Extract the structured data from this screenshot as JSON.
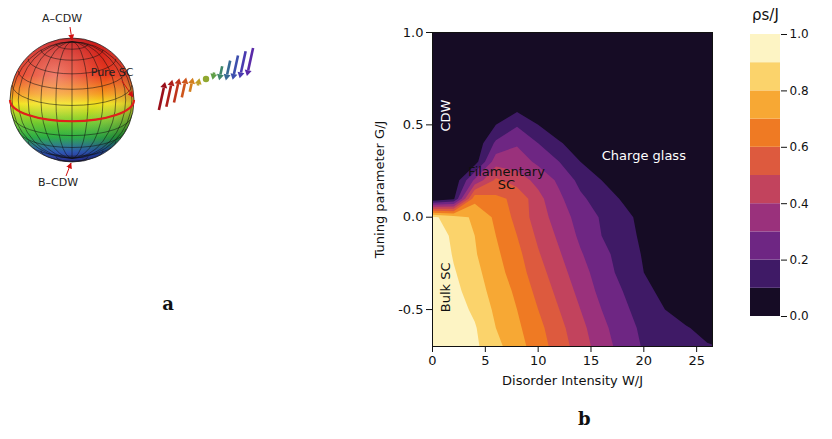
{
  "diagram": {
    "label": "a",
    "annotations": [
      "A–CDW",
      "Pure SC",
      "B–CDW"
    ]
  },
  "chart_data": {
    "type": "contour",
    "panel": "b",
    "x_label": "Disorder Intensity W/J",
    "y_label": "Tuning parameter G/J",
    "xlim": [
      0,
      26.5
    ],
    "ylim": [
      -0.7,
      1.0
    ],
    "xticks": [
      0,
      5,
      10,
      15,
      20,
      25
    ],
    "yticks": [
      {
        "value": 1.0,
        "label": "1.0"
      },
      0.5,
      {
        "value": 0,
        "label": "0.0"
      },
      -0.5
    ],
    "grid": false,
    "annotations": [
      {
        "text": "CDW",
        "x": 1.3,
        "y": 0.55
      },
      {
        "text": "Filamentary SC",
        "x": 7,
        "y": 0.21
      },
      {
        "text": "Charge glass",
        "x": 20,
        "y": 0.33
      },
      {
        "text": "Bulk SC",
        "x": 1.3,
        "y": -0.38
      }
    ],
    "x": [
      0,
      2,
      4,
      6,
      8,
      10,
      12,
      14,
      16,
      18,
      20,
      22,
      24,
      26
    ],
    "y": [
      1.0,
      0.9,
      0.8,
      0.7,
      0.6,
      0.5,
      0.4,
      0.3,
      0.2,
      0.1,
      0.0,
      -0.1,
      -0.2,
      -0.3,
      -0.4,
      -0.5,
      -0.6,
      -0.7
    ],
    "values": [
      [
        0,
        0,
        0,
        0,
        0,
        0,
        0,
        0,
        0,
        0,
        0,
        0,
        0,
        0
      ],
      [
        0,
        0,
        0,
        0,
        0,
        0,
        0,
        0,
        0,
        0,
        0,
        0,
        0,
        0
      ],
      [
        0,
        0,
        0,
        0,
        0,
        0,
        0,
        0,
        0,
        0,
        0,
        0,
        0,
        0
      ],
      [
        0,
        0,
        0,
        0,
        0,
        0,
        0,
        0,
        0,
        0,
        0,
        0,
        0,
        0
      ],
      [
        0,
        0,
        0,
        0,
        0.06,
        0,
        0,
        0,
        0,
        0,
        0,
        0,
        0,
        0
      ],
      [
        0,
        0,
        0,
        0.1,
        0.19,
        0.1,
        0.04,
        0,
        0,
        0,
        0,
        0,
        0,
        0
      ],
      [
        0,
        0,
        0.02,
        0.22,
        0.29,
        0.2,
        0.11,
        0.05,
        0,
        0,
        0,
        0,
        0,
        0
      ],
      [
        0,
        0,
        0.05,
        0.36,
        0.35,
        0.28,
        0.2,
        0.1,
        0.05,
        0,
        0,
        0,
        0,
        0
      ],
      [
        0,
        0.02,
        0.32,
        0.52,
        0.45,
        0.37,
        0.28,
        0.17,
        0.1,
        0.05,
        0.02,
        0,
        0,
        0
      ],
      [
        0,
        0.08,
        0.67,
        0.62,
        0.58,
        0.43,
        0.32,
        0.22,
        0.15,
        0.09,
        0.04,
        0,
        0,
        0
      ],
      [
        0.92,
        0.85,
        0.78,
        0.68,
        0.57,
        0.45,
        0.35,
        0.26,
        0.19,
        0.13,
        0.07,
        0.01,
        0,
        0
      ],
      [
        1.0,
        0.87,
        0.8,
        0.7,
        0.6,
        0.48,
        0.38,
        0.28,
        0.2,
        0.14,
        0.08,
        0.02,
        0,
        0
      ],
      [
        1.0,
        0.89,
        0.81,
        0.72,
        0.63,
        0.51,
        0.41,
        0.31,
        0.23,
        0.16,
        0.09,
        0.03,
        0,
        0
      ],
      [
        1.0,
        0.91,
        0.83,
        0.74,
        0.65,
        0.54,
        0.44,
        0.34,
        0.25,
        0.17,
        0.1,
        0.04,
        0,
        0
      ],
      [
        1.0,
        0.93,
        0.85,
        0.76,
        0.68,
        0.57,
        0.47,
        0.37,
        0.27,
        0.2,
        0.13,
        0.07,
        0.01,
        0
      ],
      [
        1.0,
        0.95,
        0.88,
        0.78,
        0.7,
        0.6,
        0.5,
        0.4,
        0.3,
        0.22,
        0.16,
        0.1,
        0.04,
        0
      ],
      [
        1.0,
        0.95,
        0.91,
        0.8,
        0.72,
        0.63,
        0.53,
        0.43,
        0.33,
        0.24,
        0.18,
        0.15,
        0.11,
        0.06
      ],
      [
        1.0,
        0.96,
        0.92,
        0.83,
        0.74,
        0.65,
        0.55,
        0.45,
        0.35,
        0.26,
        0.19,
        0.17,
        0.14,
        0.11
      ]
    ],
    "colorbar": {
      "label": "ρs/J",
      "range": [
        0,
        1
      ],
      "ticks": [
        {
          "value": 0,
          "label": "0.0"
        },
        0.2,
        0.4,
        0.6,
        0.8,
        {
          "value": 1,
          "label": "1.0"
        }
      ],
      "levels": [
        0,
        0.1,
        0.2,
        0.3,
        0.4,
        0.5,
        0.6,
        0.7,
        0.8,
        0.9
      ],
      "colors": [
        "#160c25",
        "#3f1a66",
        "#6e2683",
        "#9a317c",
        "#c2435d",
        "#dd5a3e",
        "#ef7a23",
        "#f7a834",
        "#fbd36b",
        "#fdf4c4"
      ]
    }
  }
}
